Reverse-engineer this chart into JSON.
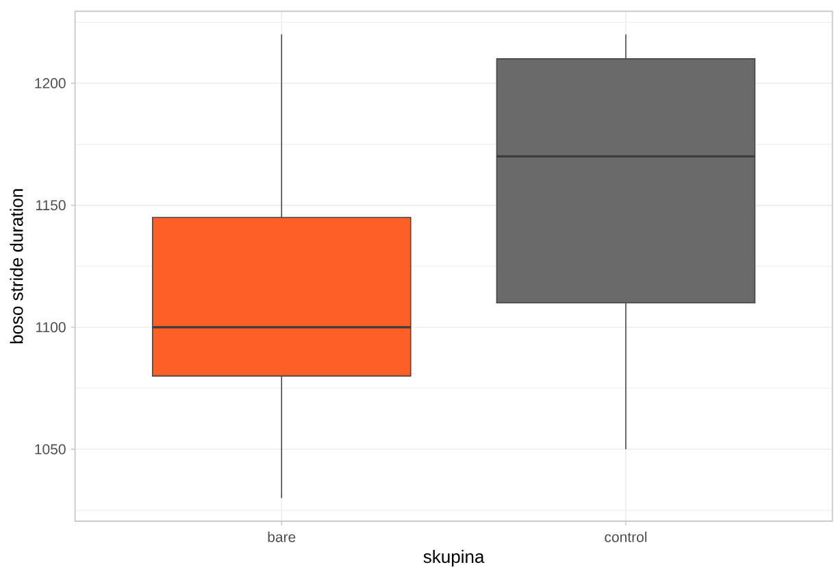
{
  "chart_data": {
    "type": "box",
    "xlabel": "skupina",
    "ylabel": "boso stride duration",
    "categories": [
      "bare",
      "control"
    ],
    "boxes": [
      {
        "low": 1030,
        "q1": 1080,
        "median": 1100,
        "q3": 1145,
        "high": 1220
      },
      {
        "low": 1050,
        "q1": 1110,
        "median": 1170,
        "q3": 1210,
        "high": 1220
      }
    ],
    "colors": [
      "#fe5f27",
      "#6a6a6a"
    ],
    "ylim": [
      1020.5,
      1229.5
    ],
    "yticks": [
      1050,
      1100,
      1150,
      1200
    ],
    "grid": true
  }
}
